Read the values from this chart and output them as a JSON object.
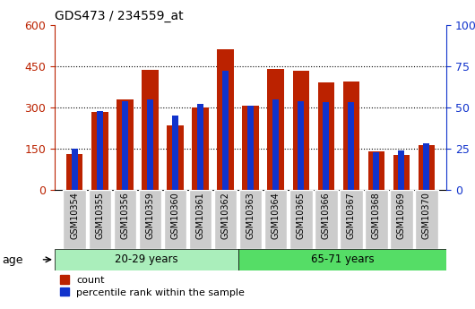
{
  "title": "GDS473 / 234559_at",
  "categories": [
    "GSM10354",
    "GSM10355",
    "GSM10356",
    "GSM10359",
    "GSM10360",
    "GSM10361",
    "GSM10362",
    "GSM10363",
    "GSM10364",
    "GSM10365",
    "GSM10366",
    "GSM10367",
    "GSM10368",
    "GSM10369",
    "GSM10370"
  ],
  "count_values": [
    130,
    285,
    328,
    435,
    235,
    300,
    510,
    305,
    440,
    432,
    390,
    395,
    140,
    128,
    162
  ],
  "percentile_values": [
    25,
    48,
    54,
    55,
    45,
    52,
    72,
    51,
    55,
    54,
    53,
    53,
    23,
    24,
    28
  ],
  "group1_label": "20-29 years",
  "group2_label": "65-71 years",
  "group1_count": 7,
  "group2_count": 8,
  "ylim_left": [
    0,
    600
  ],
  "ylim_right": [
    0,
    100
  ],
  "yticks_left": [
    0,
    150,
    300,
    450,
    600
  ],
  "yticks_right": [
    0,
    25,
    50,
    75,
    100
  ],
  "bar_color_red": "#bb2200",
  "bar_color_blue": "#1133cc",
  "group_bg_color1": "#aaeebb",
  "group_bg_color2": "#55dd66",
  "tick_bg_color": "#cccccc",
  "legend_label_red": "count",
  "legend_label_blue": "percentile rank within the sample",
  "age_label": "age",
  "bar_width": 0.65,
  "blue_bar_width": 0.25
}
